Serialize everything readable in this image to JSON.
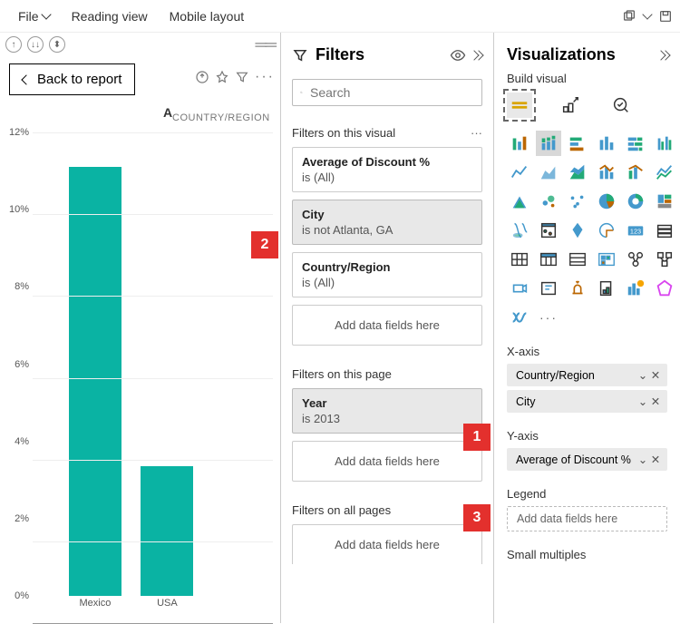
{
  "topbar": {
    "file": "File",
    "reading_view": "Reading view",
    "mobile_layout": "Mobile layout"
  },
  "chart": {
    "back_label": "Back to report",
    "region_label": "COUNTRY/REGION",
    "a_label": "A",
    "y_ticks": [
      "0%",
      "2%",
      "4%",
      "6%",
      "8%",
      "10%",
      "12%"
    ],
    "y_max": 12,
    "bars": [
      {
        "label": "Mexico",
        "value": 11.1,
        "color": "#0ab3a3",
        "x_pct": 26
      },
      {
        "label": "USA",
        "value": 3.35,
        "color": "#0ab3a3",
        "x_pct": 56
      }
    ]
  },
  "filters": {
    "title": "Filters",
    "search_placeholder": "Search",
    "section_visual": "Filters on this visual",
    "section_page": "Filters on this page",
    "section_all": "Filters on all pages",
    "add_label": "Add data fields here",
    "visual_cards": [
      {
        "title": "Average of Discount %",
        "sub": "is (All)",
        "selected": false
      },
      {
        "title": "City",
        "sub": "is not Atlanta, GA",
        "selected": true
      },
      {
        "title": "Country/Region",
        "sub": "is (All)",
        "selected": false
      }
    ],
    "page_cards": [
      {
        "title": "Year",
        "sub": "is 2013",
        "selected": true
      }
    ]
  },
  "viz": {
    "title": "Visualizations",
    "sub": "Build visual",
    "x_axis_label": "X-axis",
    "y_axis_label": "Y-axis",
    "legend_label": "Legend",
    "small_mult_label": "Small multiples",
    "x_fields": [
      "Country/Region",
      "City"
    ],
    "y_fields": [
      "Average of Discount %"
    ],
    "legend_empty": "Add data fields here"
  },
  "callouts": {
    "c1": "1",
    "c2": "2",
    "c3": "3"
  }
}
